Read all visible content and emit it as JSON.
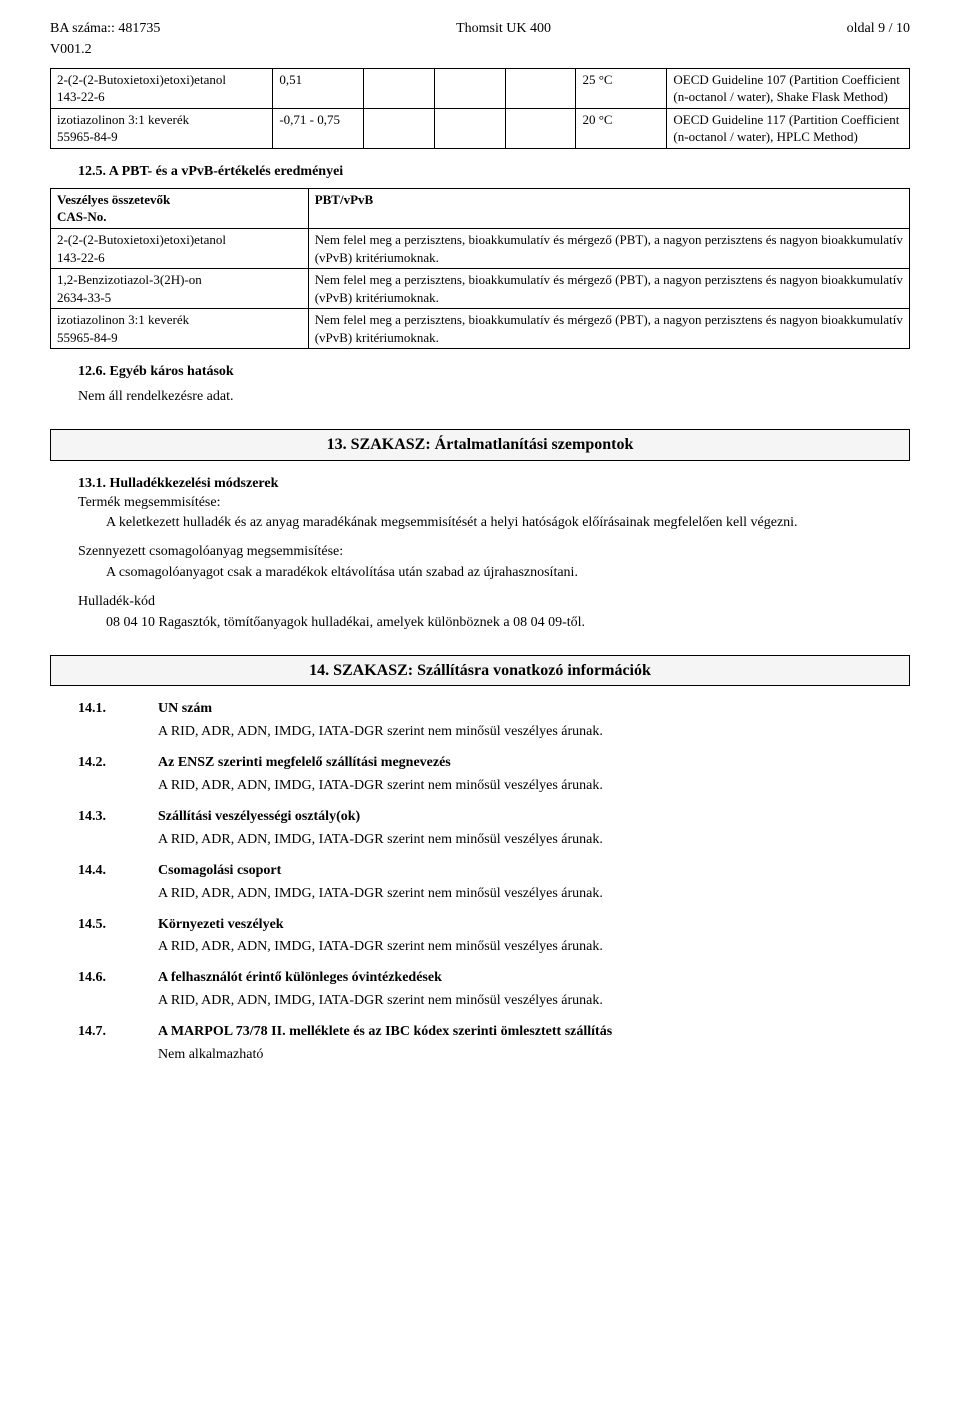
{
  "header": {
    "ba_line": "BA száma:: 481735",
    "version": "V001.2",
    "product": "Thomsit UK 400",
    "page": "oldal 9 / 10"
  },
  "table_top": {
    "rows": [
      {
        "name": "2-(2-(2-Butoxietoxi)etoxi)etanol\n143-22-6",
        "value": "0,51",
        "temp": "25 °C",
        "method": "OECD Guideline 107 (Partition Coefficient (n-octanol / water), Shake Flask Method)"
      },
      {
        "name": "izotiazolinon 3:1 keverék\n55965-84-9",
        "value": "-0,71 - 0,75",
        "temp": "20 °C",
        "method": "OECD Guideline 117 (Partition Coefficient (n-octanol / water), HPLC Method)"
      }
    ]
  },
  "s12_5": {
    "title": "12.5. A PBT- és a vPvB-értékelés eredményei",
    "header_left": "Veszélyes összetevők\nCAS-No.",
    "header_right": "PBT/vPvB",
    "rows": [
      {
        "left": "2-(2-(2-Butoxietoxi)etoxi)etanol\n143-22-6",
        "right": "Nem felel meg a perzisztens, bioakkumulatív és mérgező (PBT), a nagyon perzisztens és nagyon bioakkumulatív (vPvB) kritériumoknak."
      },
      {
        "left": "1,2-Benzizotiazol-3(2H)-on\n2634-33-5",
        "right": "Nem felel meg a perzisztens, bioakkumulatív és mérgező (PBT), a nagyon perzisztens és nagyon bioakkumulatív (vPvB) kritériumoknak."
      },
      {
        "left": "izotiazolinon 3:1 keverék\n55965-84-9",
        "right": "Nem felel meg a perzisztens, bioakkumulatív és mérgező (PBT), a nagyon perzisztens és nagyon bioakkumulatív (vPvB) kritériumoknak."
      }
    ]
  },
  "s12_6": {
    "title": "12.6. Egyéb káros hatások",
    "text": "Nem áll rendelkezésre adat."
  },
  "s13": {
    "bar": "13. SZAKASZ: Ártalmatlanítási szempontok",
    "s13_1_title": "13.1. Hulladékkezelési módszerek",
    "prod_dispose_label": "Termék megsemmisítése:",
    "prod_dispose_text": "A keletkezett hulladék és az anyag maradékának megsemmisítését a helyi hatóságok előírásainak megfelelően kell végezni.",
    "pack_dispose_label": "Szennyezett csomagolóanyag megsemmisítése:",
    "pack_dispose_text": "A csomagolóanyagot csak a maradékok eltávolítása után szabad az újrahasznosítani.",
    "waste_code_label": "Hulladék-kód",
    "waste_code_text": "08 04 10 Ragasztók, tömítőanyagok hulladékai, amelyek különböznek a 08 04 09-től."
  },
  "s14": {
    "bar": "14. SZAKASZ: Szállításra vonatkozó információk",
    "common_text": "A RID, ADR,  ADN, IMDG, IATA-DGR szerint nem minősül veszélyes árunak.",
    "items": [
      {
        "num": "14.1.",
        "label": "UN szám"
      },
      {
        "num": "14.2.",
        "label": "Az ENSZ szerinti megfelelő szállítási megnevezés"
      },
      {
        "num": "14.3.",
        "label": "Szállítási veszélyességi osztály(ok)"
      },
      {
        "num": "14.4.",
        "label": "Csomagolási csoport"
      },
      {
        "num": "14.5.",
        "label": "Környezeti veszélyek"
      },
      {
        "num": "14.6.",
        "label": "A felhasználót érintő különleges óvintézkedések"
      }
    ],
    "item7": {
      "num": "14.7.",
      "label": "A MARPOL 73/78 II. melléklete és az IBC kódex szerinti ömlesztett szállítás",
      "text": "Nem alkalmazható"
    }
  }
}
